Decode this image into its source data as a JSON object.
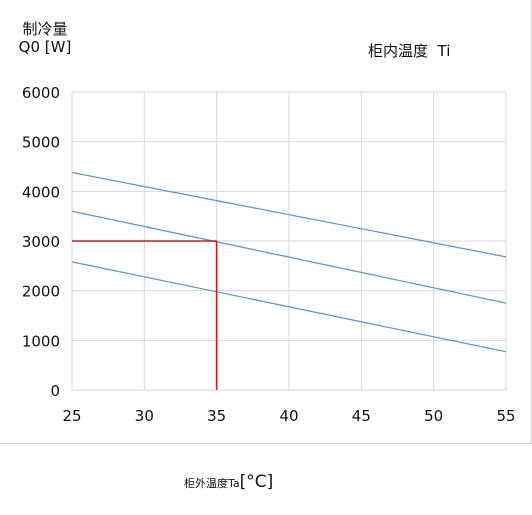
{
  "chart_data": {
    "type": "line",
    "ylabel_lines": [
      "制冷量",
      "Q0 [W]"
    ],
    "legend_title": "柜内温度  Ti",
    "xlabel_name": "柜外温度Ta",
    "xlabel_unit": "[°C]",
    "xlim": [
      25,
      55
    ],
    "ylim": [
      0,
      6000
    ],
    "x_ticks": [
      25,
      30,
      35,
      40,
      45,
      50,
      55
    ],
    "y_ticks": [
      0,
      1000,
      2000,
      3000,
      4000,
      5000,
      6000
    ],
    "grid": true,
    "line_color": "#5b9bd5",
    "series": [
      {
        "x": [
          25,
          55
        ],
        "y": [
          4380,
          2680
        ]
      },
      {
        "x": [
          25,
          55
        ],
        "y": [
          3600,
          1750
        ]
      },
      {
        "x": [
          25,
          55
        ],
        "y": [
          2580,
          770
        ]
      }
    ],
    "reference_lines": {
      "color": "#e01515",
      "point": {
        "x": 35,
        "y": 3000
      }
    }
  }
}
